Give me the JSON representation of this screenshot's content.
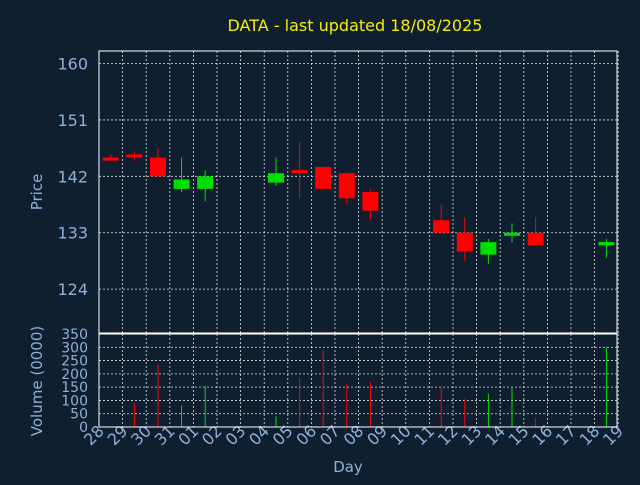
{
  "chart_data": {
    "type": "candlestick",
    "title": "DATA - last updated 18/08/2025",
    "xlabel": "Day",
    "ylabel": "Price",
    "volume_label": "Volume (0000)",
    "x_ticks": [
      "28",
      "29",
      "30",
      "31",
      "01",
      "02",
      "03",
      "04",
      "05",
      "06",
      "07",
      "08",
      "09",
      "10",
      "11",
      "12",
      "13",
      "14",
      "15",
      "16",
      "17",
      "18",
      "19"
    ],
    "price_ylim": [
      117,
      162
    ],
    "price_ticks": [
      "124",
      "133",
      "142",
      "151",
      "160"
    ],
    "volume_ylim": [
      0,
      350
    ],
    "volume_ticks": [
      "0",
      "50",
      "100",
      "150",
      "200",
      "250",
      "300",
      "350"
    ],
    "grid": true,
    "colors": {
      "up": "#00e000",
      "down": "#ff0000",
      "title": "#f5f000",
      "axis_text": "#8fb0d8",
      "background": "#0f1f30"
    },
    "candles": [
      {
        "day": "28",
        "open": 145.0,
        "high": 145.5,
        "low": 144.5,
        "close": 144.5,
        "volume": 0
      },
      {
        "day": "29",
        "open": 145.5,
        "high": 146.0,
        "low": 144.5,
        "close": 145.0,
        "volume": 90
      },
      {
        "day": "30",
        "open": 145.0,
        "high": 146.5,
        "low": 142.0,
        "close": 142.0,
        "volume": 235
      },
      {
        "day": "31",
        "open": 140.0,
        "high": 145.0,
        "low": 139.5,
        "close": 141.5,
        "volume": 80
      },
      {
        "day": "01",
        "open": 140.0,
        "high": 143.0,
        "low": 138.0,
        "close": 142.0,
        "volume": 155
      },
      {
        "day": "04",
        "open": 141.0,
        "high": 145.0,
        "low": 140.5,
        "close": 142.5,
        "volume": 40
      },
      {
        "day": "05",
        "open": 143.0,
        "high": 147.5,
        "low": 138.5,
        "close": 142.5,
        "volume": 185
      },
      {
        "day": "06",
        "open": 143.5,
        "high": 143.5,
        "low": 140.0,
        "close": 140.0,
        "volume": 290
      },
      {
        "day": "07",
        "open": 142.5,
        "high": 142.5,
        "low": 137.5,
        "close": 138.5,
        "volume": 160
      },
      {
        "day": "08",
        "open": 139.5,
        "high": 140.0,
        "low": 135.0,
        "close": 136.5,
        "volume": 170
      },
      {
        "day": "11",
        "open": 135.0,
        "high": 137.5,
        "low": 133.0,
        "close": 133.0,
        "volume": 150
      },
      {
        "day": "12",
        "open": 133.0,
        "high": 135.5,
        "low": 128.5,
        "close": 130.0,
        "volume": 105
      },
      {
        "day": "13",
        "open": 129.5,
        "high": 132.0,
        "low": 128.0,
        "close": 131.5,
        "volume": 125
      },
      {
        "day": "14",
        "open": 133.0,
        "high": 134.5,
        "low": 131.5,
        "close": 133.0,
        "volume": 150
      },
      {
        "day": "15",
        "open": 133.0,
        "high": 135.5,
        "low": 131.0,
        "close": 131.0,
        "volume": 35
      },
      {
        "day": "18",
        "open": 131.0,
        "high": 132.0,
        "low": 129.0,
        "close": 131.5,
        "volume": 300
      }
    ]
  }
}
